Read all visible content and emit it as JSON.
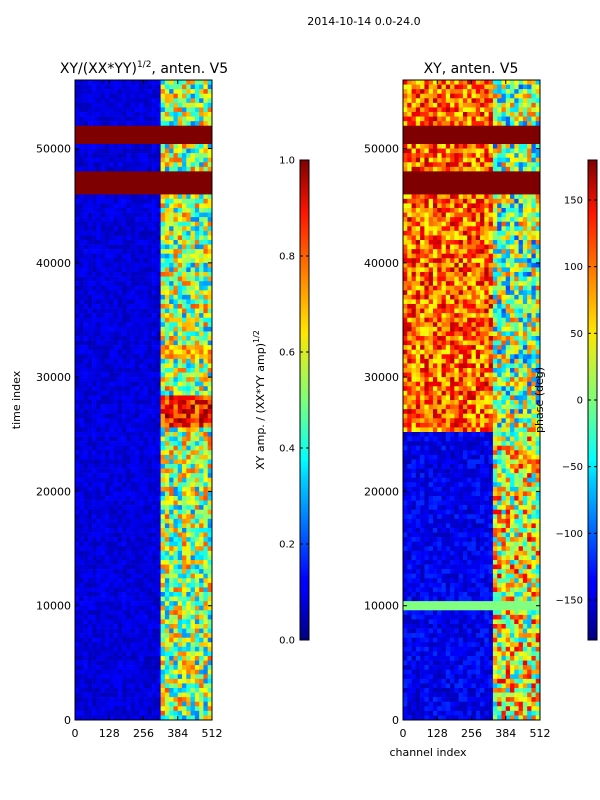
{
  "figure": {
    "suptitle": "2014-10-14 0.0-24.0"
  },
  "chart_data": [
    {
      "type": "heatmap",
      "title": "XY/(XX*YY)",
      "title_sup": "1/2",
      "title_suffix": ", anten. V5",
      "xlabel": "",
      "ylabel": "time index",
      "xlim": [
        0,
        512
      ],
      "ylim": [
        0,
        56000
      ],
      "x_ticks": [
        0,
        128,
        256,
        384,
        512
      ],
      "y_ticks": [
        0,
        10000,
        20000,
        30000,
        40000,
        50000
      ],
      "bad_rows": [
        [
          46000,
          48000
        ],
        [
          50400,
          51800
        ]
      ],
      "colorbar": {
        "label": "XY amp. / (XX*YY amp)",
        "label_sup": "1/2",
        "range": [
          0.0,
          1.0
        ],
        "ticks": [
          "0.0",
          "0.2",
          "0.4",
          "0.6",
          "0.8",
          "1.0"
        ],
        "colormap": "jet"
      }
    },
    {
      "type": "heatmap",
      "title": "XY, anten. V5",
      "xlabel": "channel index",
      "ylabel": "",
      "xlim": [
        0,
        512
      ],
      "ylim": [
        0,
        56000
      ],
      "x_ticks": [
        0,
        128,
        256,
        384,
        512
      ],
      "y_ticks": [
        0,
        10000,
        20000,
        30000,
        40000,
        50000
      ],
      "bad_rows": [
        [
          46000,
          48000
        ],
        [
          50400,
          51800
        ]
      ],
      "colorbar": {
        "label": "phase (deg)",
        "range": [
          -180,
          180
        ],
        "ticks": [
          "−150",
          "−100",
          "−50",
          "0",
          "50",
          "100",
          "150"
        ],
        "colormap": "jet"
      }
    }
  ]
}
